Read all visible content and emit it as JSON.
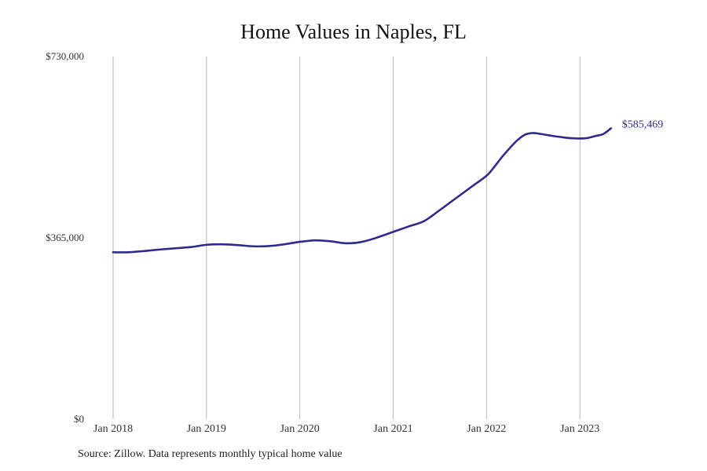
{
  "chart_data": {
    "type": "line",
    "title": "Home Values in Naples, FL",
    "source_note": "Source: Zillow. Data represents monthly typical home value",
    "x_tick_labels": [
      "Jan 2018",
      "Jan 2019",
      "Jan 2020",
      "Jan 2021",
      "Jan 2022",
      "Jan 2023"
    ],
    "y_tick_labels": [
      "$0",
      "$365,000",
      "$730,000"
    ],
    "y_ticks": [
      0,
      365000,
      730000
    ],
    "ylim": [
      0,
      730000
    ],
    "xlim": [
      "2018-01",
      "2024-01"
    ],
    "grid": "vertical at year starts",
    "line_color": "#2e2a8f",
    "end_label": "$585,469",
    "series": [
      {
        "x": [
          "2018-01",
          "2018-03",
          "2018-05",
          "2018-07",
          "2018-09",
          "2018-11",
          "2019-01",
          "2019-03",
          "2019-05",
          "2019-07",
          "2019-09",
          "2019-11",
          "2020-01",
          "2020-03",
          "2020-05",
          "2020-07",
          "2020-09",
          "2020-11",
          "2021-01",
          "2021-03",
          "2021-05",
          "2021-07",
          "2021-09",
          "2021-11",
          "2022-01",
          "2022-02",
          "2022-03",
          "2022-04",
          "2022-05",
          "2022-06",
          "2022-07",
          "2022-08",
          "2022-09",
          "2022-10",
          "2022-11",
          "2022-12",
          "2023-01",
          "2023-02",
          "2023-03",
          "2023-04",
          "2023-05"
        ],
        "values": [
          336000,
          336000,
          338500,
          341500,
          344000,
          346500,
          351000,
          352000,
          350500,
          348000,
          348500,
          352000,
          357000,
          360000,
          358000,
          354000,
          357000,
          366000,
          377000,
          388000,
          399000,
          421000,
          444000,
          467000,
          490000,
          508000,
          528000,
          546000,
          562000,
          573000,
          576000,
          574000,
          571500,
          569000,
          567000,
          565500,
          565000,
          566000,
          570000,
          574000,
          585469
        ]
      }
    ]
  }
}
